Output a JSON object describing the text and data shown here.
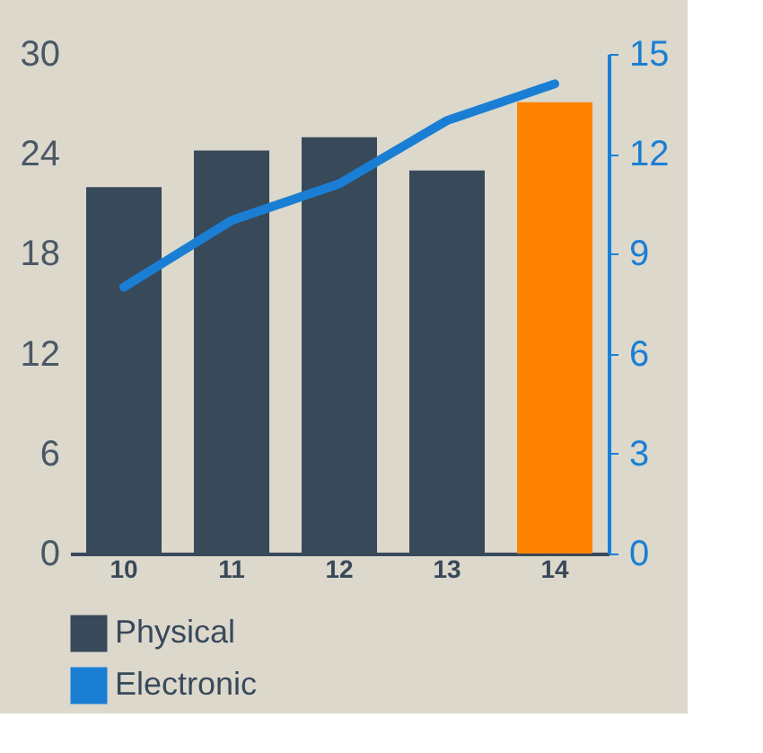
{
  "chart_data": {
    "type": "bar",
    "categories": [
      "10",
      "11",
      "12",
      "13",
      "14"
    ],
    "series": [
      {
        "name": "Physical",
        "type": "bar",
        "color": "#38495a",
        "colors": [
          "#38495a",
          "#38495a",
          "#38495a",
          "#38495a",
          "#ff8200"
        ],
        "values": [
          22,
          24.2,
          25,
          23,
          27.1
        ]
      },
      {
        "name": "Electronic",
        "type": "line",
        "axis": "y2",
        "color": "#1a7fd4",
        "values": [
          8,
          10,
          11.1,
          13,
          14.1
        ]
      }
    ],
    "ylim": [
      0,
      30
    ],
    "yticks": [
      0,
      6,
      12,
      18,
      24,
      30
    ],
    "y2lim": [
      0,
      15
    ],
    "y2ticks": [
      0,
      3,
      6,
      9,
      12,
      15
    ],
    "grid": false,
    "legend": "bottom",
    "marker": "none",
    "line_style": "solid"
  }
}
